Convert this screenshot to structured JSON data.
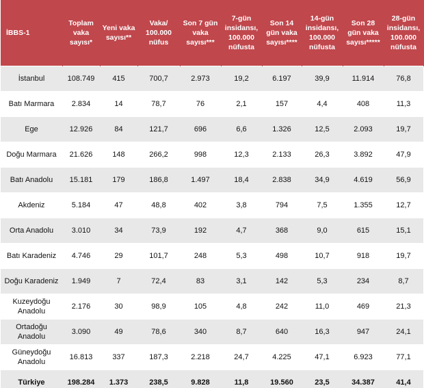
{
  "table": {
    "header": [
      "İBBS-1",
      "Toplam vaka sayısı*",
      "Yeni vaka sayısı**",
      "Vaka/ 100.000 nüfus",
      "Son 7 gün vaka sayısı***",
      "7-gün insidansı, 100.000 nüfusta",
      "Son 14 gün vaka sayısı****",
      "14-gün insidansı, 100.000 nüfusta",
      "Son 28 gün vaka sayısı*****",
      "28-gün insidansı, 100.000 nüfusta"
    ],
    "rows": [
      [
        "İstanbul",
        "108.749",
        "415",
        "700,7",
        "2.973",
        "19,2",
        "6.197",
        "39,9",
        "11.914",
        "76,8"
      ],
      [
        "Batı Marmara",
        "2.834",
        "14",
        "78,7",
        "76",
        "2,1",
        "157",
        "4,4",
        "408",
        "11,3"
      ],
      [
        "Ege",
        "12.926",
        "84",
        "121,7",
        "696",
        "6,6",
        "1.326",
        "12,5",
        "2.093",
        "19,7"
      ],
      [
        "Doğu Marmara",
        "21.626",
        "148",
        "266,2",
        "998",
        "12,3",
        "2.133",
        "26,3",
        "3.892",
        "47,9"
      ],
      [
        "Batı Anadolu",
        "15.181",
        "179",
        "186,8",
        "1.497",
        "18,4",
        "2.838",
        "34,9",
        "4.619",
        "56,9"
      ],
      [
        "Akdeniz",
        "5.184",
        "47",
        "48,8",
        "402",
        "3,8",
        "794",
        "7,5",
        "1.355",
        "12,7"
      ],
      [
        "Orta Anadolu",
        "3.010",
        "34",
        "73,9",
        "192",
        "4,7",
        "368",
        "9,0",
        "615",
        "15,1"
      ],
      [
        "Batı Karadeniz",
        "4.746",
        "29",
        "101,7",
        "248",
        "5,3",
        "498",
        "10,7",
        "918",
        "19,7"
      ],
      [
        "Doğu Karadeniz",
        "1.949",
        "7",
        "72,4",
        "83",
        "3,1",
        "142",
        "5,3",
        "234",
        "8,7"
      ],
      [
        "Kuzeydoğu Anadolu",
        "2.176",
        "30",
        "98,9",
        "105",
        "4,8",
        "242",
        "11,0",
        "469",
        "21,3"
      ],
      [
        "Ortadoğu Anadolu",
        "3.090",
        "49",
        "78,6",
        "340",
        "8,7",
        "640",
        "16,3",
        "947",
        "24,1"
      ],
      [
        "Güneydoğu Anadolu",
        "16.813",
        "337",
        "187,3",
        "2.218",
        "24,7",
        "4.225",
        "47,1",
        "6.923",
        "77,1"
      ],
      [
        "Türkiye",
        "198.284",
        "1.373",
        "238,5",
        "9.828",
        "11,8",
        "19.560",
        "23,5",
        "34.387",
        "41,4"
      ]
    ]
  }
}
